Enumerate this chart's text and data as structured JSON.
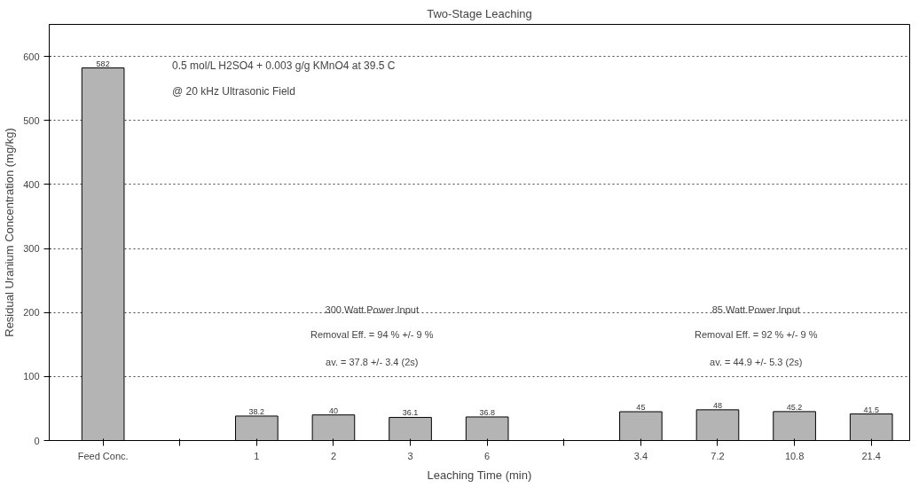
{
  "chart_data": {
    "type": "bar",
    "title": "Two-Stage Leaching",
    "xlabel": "Leaching Time (min)",
    "ylabel": "Residual Uranium Concentration (mg/kg)",
    "categories": [
      "Feed Conc.",
      null,
      "1",
      "2",
      "3",
      "6",
      null,
      "3.4",
      "7.2",
      "10.8",
      "21.4"
    ],
    "values": [
      582,
      null,
      38.2,
      40,
      36.1,
      36.8,
      null,
      45,
      48,
      45.2,
      41.5
    ],
    "color": "#b4b4b4",
    "data_labels": true,
    "ylim": [
      0,
      650
    ],
    "yticks": [
      0,
      100,
      200,
      300,
      400,
      500,
      600
    ],
    "grid": "y",
    "annotations": [
      "0.5 mol/L H2SO4 + 0.003 g/g KMnO4 at 39.5 C",
      "@ 20 kHz Ultrasonic Field",
      "300 Watt Power Input",
      "Removal Eff. = 94 % +/- 9 %",
      "av. = 37.8 +/- 3.4 (2s)",
      "85 Watt Power Input",
      "Removal Eff. = 92 % +/- 9 %",
      "av. = 44.9 +/- 5.3 (2s)"
    ]
  }
}
